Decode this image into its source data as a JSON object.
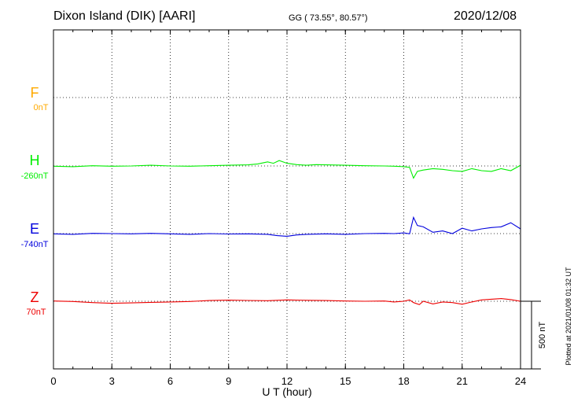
{
  "header": {
    "station": "Dixon Island (DIK)  [AARI]",
    "coords": "GG ( 73.55°,  80.57°)",
    "date": "2020/12/08"
  },
  "channels": [
    {
      "name": "F",
      "offset": "0nT",
      "color": "#ffaa00"
    },
    {
      "name": "H",
      "offset": "-260nT",
      "color": "#00ee00"
    },
    {
      "name": "E",
      "offset": "-740nT",
      "color": "#0000dd"
    },
    {
      "name": "Z",
      "offset": "70nT",
      "color": "#ee0000"
    }
  ],
  "scale_label": "500 nT",
  "plotted_label": "Plotted at 2021/01/08 01:32 UT",
  "chart_data": {
    "type": "line",
    "xlabel": "U T (hour)",
    "xlim": [
      0,
      24
    ],
    "xticks": [
      "0",
      "3",
      "6",
      "9",
      "12",
      "15",
      "18",
      "21",
      "24"
    ],
    "ylabel": "",
    "grid": true,
    "series": [
      {
        "name": "H",
        "color": "#00ee00",
        "x": [
          0,
          1,
          2,
          3,
          4,
          5,
          6,
          7,
          8,
          9,
          10,
          10.5,
          11,
          11.3,
          11.6,
          12,
          12.5,
          13,
          13.5,
          14,
          15,
          16,
          17,
          17.5,
          18,
          18.3,
          18.5,
          18.7,
          19,
          19.5,
          20,
          20.5,
          21,
          21.5,
          22,
          22.5,
          23,
          23.5,
          24
        ],
        "y": [
          -262,
          -265,
          -258,
          -262,
          -260,
          -255,
          -260,
          -262,
          -258,
          -255,
          -252,
          -245,
          -230,
          -240,
          -220,
          -240,
          -250,
          -255,
          -250,
          -252,
          -255,
          -258,
          -260,
          -262,
          -265,
          -270,
          -350,
          -300,
          -290,
          -280,
          -285,
          -295,
          -300,
          -280,
          -295,
          -300,
          -280,
          -295,
          -255
        ]
      },
      {
        "name": "E",
        "color": "#0000dd",
        "x": [
          0,
          1,
          2,
          3,
          4,
          5,
          6,
          7,
          8,
          9,
          10,
          11,
          11.5,
          12,
          12.5,
          13,
          14,
          15,
          16,
          17,
          17.5,
          18,
          18.3,
          18.5,
          18.7,
          19,
          19.5,
          20,
          20.5,
          21,
          21.5,
          22,
          22.5,
          23,
          23.5,
          24
        ],
        "y": [
          -742,
          -745,
          -738,
          -740,
          -742,
          -738,
          -742,
          -745,
          -740,
          -743,
          -742,
          -745,
          -755,
          -760,
          -750,
          -745,
          -742,
          -745,
          -740,
          -738,
          -740,
          -735,
          -742,
          -620,
          -680,
          -690,
          -730,
          -720,
          -740,
          -700,
          -720,
          -705,
          -695,
          -690,
          -660,
          -705
        ]
      },
      {
        "name": "Z",
        "color": "#ee0000",
        "x": [
          0,
          1,
          2,
          3,
          4,
          5,
          6,
          7,
          8,
          9,
          10,
          11,
          12,
          13,
          14,
          15,
          16,
          17,
          17.5,
          18,
          18.3,
          18.5,
          18.8,
          19,
          19.5,
          20,
          20.5,
          21,
          21.5,
          22,
          22.5,
          23,
          23.5,
          24
        ],
        "y": [
          72,
          68,
          60,
          55,
          58,
          62,
          65,
          68,
          75,
          78,
          76,
          74,
          80,
          77,
          75,
          72,
          70,
          72,
          65,
          70,
          80,
          60,
          45,
          70,
          50,
          65,
          60,
          48,
          65,
          80,
          85,
          90,
          82,
          70
        ]
      }
    ]
  }
}
